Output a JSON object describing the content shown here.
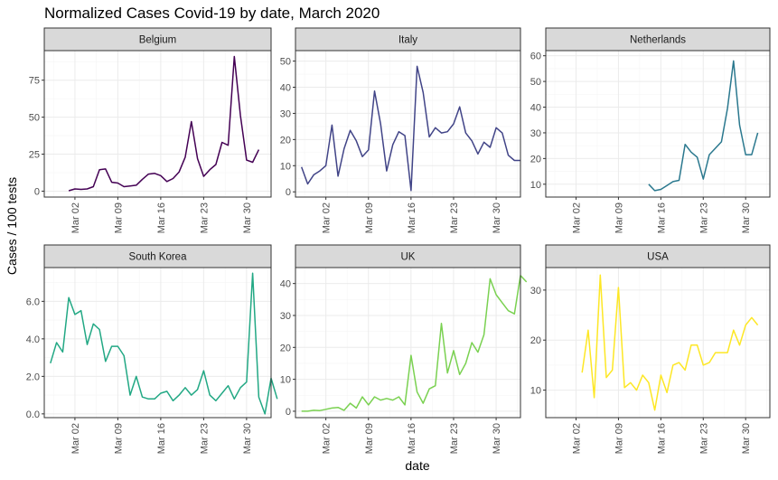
{
  "chart_data": {
    "type": "line",
    "title": "Normalized Cases Covid-19 by date, March 2020",
    "xlabel": "date",
    "ylabel": "Cases / 100 tests",
    "x_ticks": [
      "Mar 02",
      "Mar 09",
      "Mar 16",
      "Mar 23",
      "Mar 30"
    ],
    "x_tick_days": [
      2,
      9,
      16,
      23,
      30
    ],
    "xlim_days": [
      -3,
      34
    ],
    "grid": true,
    "layout": "facet_wrap 2 rows x 3 columns, free scales",
    "panels": [
      {
        "name": "Belgium",
        "color": "#440154",
        "ylim": [
          -4,
          95
        ],
        "y_ticks": [
          0,
          25,
          50,
          75
        ],
        "y_tick_labels": [
          "0",
          "25",
          "50",
          "75"
        ],
        "points": [
          [
            1,
            0.3
          ],
          [
            2,
            1.5
          ],
          [
            3,
            1.2
          ],
          [
            4,
            1.5
          ],
          [
            5,
            3
          ],
          [
            6,
            14.5
          ],
          [
            7,
            15
          ],
          [
            8,
            6
          ],
          [
            9,
            5.5
          ],
          [
            10,
            3
          ],
          [
            11,
            3.5
          ],
          [
            12,
            4
          ],
          [
            13,
            8
          ],
          [
            14,
            11.5
          ],
          [
            15,
            12
          ],
          [
            16,
            10.5
          ],
          [
            17,
            6.5
          ],
          [
            18,
            8.5
          ],
          [
            19,
            13
          ],
          [
            20,
            23
          ],
          [
            21,
            47
          ],
          [
            22,
            22
          ],
          [
            23,
            10
          ],
          [
            24,
            14.5
          ],
          [
            25,
            18
          ],
          [
            26,
            33
          ],
          [
            27,
            31
          ],
          [
            28,
            91
          ],
          [
            29,
            51
          ],
          [
            30,
            21
          ],
          [
            31,
            19.5
          ],
          [
            32,
            28
          ]
        ]
      },
      {
        "name": "Italy",
        "color": "#414487",
        "ylim": [
          -2,
          54
        ],
        "y_ticks": [
          0,
          10,
          20,
          30,
          40,
          50
        ],
        "y_tick_labels": [
          "0",
          "10",
          "20",
          "30",
          "40",
          "50"
        ],
        "points": [
          [
            -2,
            9.5
          ],
          [
            -1,
            3
          ],
          [
            0,
            6.5
          ],
          [
            1,
            8
          ],
          [
            2,
            10
          ],
          [
            3,
            25.5
          ],
          [
            4,
            6
          ],
          [
            5,
            16.5
          ],
          [
            6,
            23.5
          ],
          [
            7,
            19.5
          ],
          [
            8,
            13.5
          ],
          [
            9,
            16
          ],
          [
            10,
            38.5
          ],
          [
            11,
            26
          ],
          [
            12,
            8
          ],
          [
            13,
            18
          ],
          [
            14,
            23
          ],
          [
            15,
            21.5
          ],
          [
            16,
            0.5
          ],
          [
            17,
            48
          ],
          [
            18,
            38
          ],
          [
            19,
            21
          ],
          [
            20,
            24.5
          ],
          [
            21,
            22.5
          ],
          [
            22,
            23
          ],
          [
            23,
            26
          ],
          [
            24,
            32.5
          ],
          [
            25,
            22.5
          ],
          [
            26,
            19.5
          ],
          [
            27,
            14.5
          ],
          [
            28,
            19
          ],
          [
            29,
            17
          ],
          [
            30,
            24.5
          ],
          [
            31,
            22.5
          ],
          [
            32,
            14
          ],
          [
            33,
            12
          ],
          [
            34,
            12
          ]
        ]
      },
      {
        "name": "Netherlands",
        "color": "#2a788e",
        "ylim": [
          5,
          62
        ],
        "y_ticks": [
          10,
          20,
          30,
          40,
          50,
          60
        ],
        "y_tick_labels": [
          "10",
          "20",
          "30",
          "40",
          "50",
          "60"
        ],
        "points": [
          [
            14,
            10
          ],
          [
            15,
            7.5
          ],
          [
            16,
            8
          ],
          [
            17,
            9.5
          ],
          [
            18,
            11
          ],
          [
            19,
            11.5
          ],
          [
            20,
            25.5
          ],
          [
            21,
            22.5
          ],
          [
            22,
            20.5
          ],
          [
            23,
            12
          ],
          [
            24,
            21.5
          ],
          [
            25,
            24
          ],
          [
            26,
            26.5
          ],
          [
            27,
            39.5
          ],
          [
            28,
            58
          ],
          [
            29,
            33
          ],
          [
            30,
            21.5
          ],
          [
            31,
            21.5
          ],
          [
            32,
            30
          ]
        ]
      },
      {
        "name": "South Korea",
        "color": "#22a884",
        "ylim": [
          -0.2,
          7.8
        ],
        "y_ticks": [
          0,
          2,
          4,
          6
        ],
        "y_tick_labels": [
          "0.0",
          "2.0",
          "4.0",
          "6.0"
        ],
        "points": [
          [
            -2,
            2.7
          ],
          [
            -1,
            3.8
          ],
          [
            0,
            3.3
          ],
          [
            1,
            6.2
          ],
          [
            2,
            5.3
          ],
          [
            3,
            5.5
          ],
          [
            4,
            3.7
          ],
          [
            5,
            4.8
          ],
          [
            6,
            4.5
          ],
          [
            7,
            2.8
          ],
          [
            8,
            3.6
          ],
          [
            9,
            3.6
          ],
          [
            10,
            3.1
          ],
          [
            11,
            1
          ],
          [
            12,
            2
          ],
          [
            13,
            0.9
          ],
          [
            14,
            0.8
          ],
          [
            15,
            0.8
          ],
          [
            16,
            1.1
          ],
          [
            17,
            1.2
          ],
          [
            18,
            0.7
          ],
          [
            19,
            1
          ],
          [
            20,
            1.4
          ],
          [
            21,
            1
          ],
          [
            22,
            1.3
          ],
          [
            23,
            2.3
          ],
          [
            24,
            1
          ],
          [
            25,
            0.7
          ],
          [
            26,
            1.1
          ],
          [
            27,
            1.5
          ],
          [
            28,
            0.8
          ],
          [
            29,
            1.4
          ],
          [
            30,
            1.7
          ],
          [
            31,
            7.5
          ],
          [
            32,
            0.9
          ],
          [
            33,
            0
          ],
          [
            34,
            1.9
          ],
          [
            35,
            0.8
          ]
        ]
      },
      {
        "name": "UK",
        "color": "#7ad151",
        "ylim": [
          -2,
          45
        ],
        "y_ticks": [
          0,
          10,
          20,
          30,
          40
        ],
        "y_tick_labels": [
          "0",
          "10",
          "20",
          "30",
          "40"
        ],
        "points": [
          [
            -2,
            0
          ],
          [
            -1,
            0
          ],
          [
            0,
            0.3
          ],
          [
            1,
            0.2
          ],
          [
            2,
            0.6
          ],
          [
            3,
            1
          ],
          [
            4,
            1.2
          ],
          [
            5,
            0.3
          ],
          [
            6,
            2.5
          ],
          [
            7,
            1
          ],
          [
            8,
            4.5
          ],
          [
            9,
            2
          ],
          [
            10,
            4.5
          ],
          [
            11,
            3.5
          ],
          [
            12,
            4
          ],
          [
            13,
            3.5
          ],
          [
            14,
            4.5
          ],
          [
            15,
            2
          ],
          [
            16,
            17.5
          ],
          [
            17,
            6
          ],
          [
            18,
            2.5
          ],
          [
            19,
            7
          ],
          [
            20,
            8
          ],
          [
            21,
            27.5
          ],
          [
            22,
            12
          ],
          [
            23,
            19
          ],
          [
            24,
            11.5
          ],
          [
            25,
            15
          ],
          [
            26,
            21.5
          ],
          [
            27,
            18.5
          ],
          [
            28,
            24
          ],
          [
            29,
            41.5
          ],
          [
            30,
            36.5
          ],
          [
            31,
            34
          ],
          [
            32,
            31.5
          ],
          [
            33,
            30.5
          ],
          [
            34,
            42.5
          ],
          [
            35,
            40.5
          ]
        ]
      },
      {
        "name": "USA",
        "color": "#fde725",
        "ylim": [
          4.5,
          34.5
        ],
        "y_ticks": [
          10,
          20,
          30
        ],
        "y_tick_labels": [
          "10",
          "20",
          "30"
        ],
        "points": [
          [
            3,
            13.5
          ],
          [
            4,
            22
          ],
          [
            5,
            8.5
          ],
          [
            6,
            33
          ],
          [
            7,
            12.5
          ],
          [
            8,
            14
          ],
          [
            9,
            30.5
          ],
          [
            10,
            10.5
          ],
          [
            11,
            11.5
          ],
          [
            12,
            10
          ],
          [
            13,
            13
          ],
          [
            14,
            11.5
          ],
          [
            15,
            6
          ],
          [
            16,
            13
          ],
          [
            17,
            9.5
          ],
          [
            18,
            15
          ],
          [
            19,
            15.5
          ],
          [
            20,
            14
          ],
          [
            21,
            19
          ],
          [
            22,
            19
          ],
          [
            23,
            15
          ],
          [
            24,
            15.5
          ],
          [
            25,
            17.5
          ],
          [
            26,
            17.5
          ],
          [
            27,
            17.5
          ],
          [
            28,
            22
          ],
          [
            29,
            19
          ],
          [
            30,
            23
          ],
          [
            31,
            24.5
          ],
          [
            32,
            23
          ]
        ]
      }
    ]
  }
}
